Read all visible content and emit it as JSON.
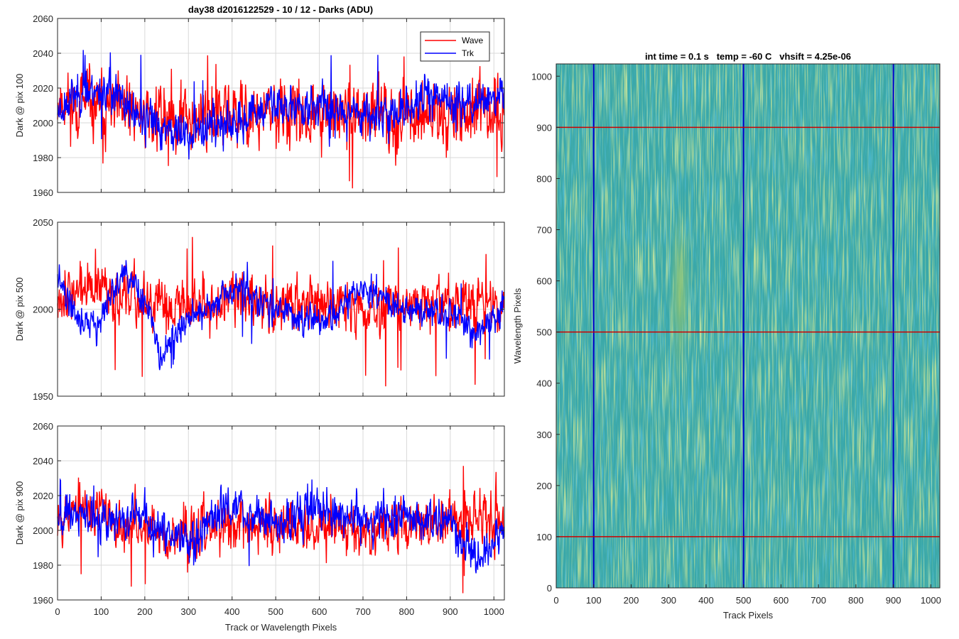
{
  "figure_title": "day38 d2016122529 - 10 / 12 - Darks (ADU)",
  "legend": {
    "position": "top-right"
  },
  "colors": {
    "wave": "#ff0000",
    "trk": "#0000ff",
    "grid": "#d9d9d9"
  },
  "chart_data": [
    {
      "type": "line",
      "ylabel": "Dark @ pix 100",
      "xlim": [
        0,
        1024
      ],
      "ylim": [
        1960,
        2060
      ],
      "yticks": [
        1960,
        1980,
        2000,
        2020,
        2040,
        2060
      ],
      "grid": true,
      "series": [
        {
          "name": "Wave",
          "color": "#ff0000",
          "mean": 2006,
          "noise": 11,
          "spike_min": 1962,
          "spike_max": 2041,
          "trend": [
            [
              0,
              2013
            ],
            [
              50,
              2010
            ],
            [
              100,
              2008
            ],
            [
              200,
              2005
            ],
            [
              300,
              2004
            ],
            [
              400,
              2003
            ],
            [
              500,
              2005
            ],
            [
              600,
              2004
            ],
            [
              700,
              2005
            ],
            [
              800,
              2004
            ],
            [
              900,
              2006
            ],
            [
              1024,
              2006
            ]
          ]
        },
        {
          "name": "Trk",
          "color": "#0000ff",
          "mean": 2008,
          "noise": 7,
          "spike_min": 1984,
          "spike_max": 2042,
          "trend": [
            [
              0,
              2008
            ],
            [
              60,
              2020
            ],
            [
              120,
              2018
            ],
            [
              180,
              2004
            ],
            [
              240,
              1998
            ],
            [
              300,
              1992
            ],
            [
              350,
              2000
            ],
            [
              400,
              1997
            ],
            [
              450,
              2003
            ],
            [
              500,
              2012
            ],
            [
              560,
              2008
            ],
            [
              620,
              2010
            ],
            [
              700,
              2006
            ],
            [
              780,
              2005
            ],
            [
              850,
              2015
            ],
            [
              900,
              2012
            ],
            [
              1024,
              2014
            ]
          ]
        }
      ]
    },
    {
      "type": "line",
      "ylabel": "Dark @ pix 500",
      "xlim": [
        0,
        1024
      ],
      "ylim": [
        1950,
        2050
      ],
      "yticks": [
        1950,
        2000,
        2050
      ],
      "grid": true,
      "series": [
        {
          "name": "Wave",
          "color": "#ff0000",
          "mean": 2004,
          "noise": 9,
          "spike_min": 1954,
          "spike_max": 2044,
          "trend": [
            [
              0,
              2010
            ],
            [
              100,
              2012
            ],
            [
              200,
              2002
            ],
            [
              300,
              2003
            ],
            [
              400,
              2006
            ],
            [
              500,
              2002
            ],
            [
              600,
              2004
            ],
            [
              700,
              2001
            ],
            [
              800,
              2002
            ],
            [
              900,
              2004
            ],
            [
              1024,
              2003
            ]
          ]
        },
        {
          "name": "Trk",
          "color": "#0000ff",
          "mean": 2000,
          "noise": 5,
          "spike_min": 1966,
          "spike_max": 2028,
          "trend": [
            [
              0,
              2015
            ],
            [
              50,
              1995
            ],
            [
              90,
              1990
            ],
            [
              150,
              2020
            ],
            [
              200,
              2005
            ],
            [
              240,
              1972
            ],
            [
              300,
              1996
            ],
            [
              350,
              2000
            ],
            [
              420,
              2013
            ],
            [
              460,
              2003
            ],
            [
              520,
              2000
            ],
            [
              600,
              1990
            ],
            [
              700,
              2012
            ],
            [
              800,
              2000
            ],
            [
              900,
              1998
            ],
            [
              960,
              1985
            ],
            [
              1024,
              2001
            ]
          ]
        }
      ]
    },
    {
      "type": "line",
      "ylabel": "Dark @ pix 900",
      "xlabel": "Track or Wavelength Pixels",
      "xlim": [
        0,
        1024
      ],
      "xticks": [
        0,
        100,
        200,
        300,
        400,
        500,
        600,
        700,
        800,
        900,
        1000
      ],
      "ylim": [
        1960,
        2060
      ],
      "yticks": [
        1960,
        1980,
        2000,
        2020,
        2040,
        2060
      ],
      "grid": true,
      "series": [
        {
          "name": "Wave",
          "color": "#ff0000",
          "mean": 2004,
          "noise": 9,
          "spike_min": 1963,
          "spike_max": 2040,
          "trend": [
            [
              0,
              2012
            ],
            [
              100,
              2010
            ],
            [
              200,
              2000
            ],
            [
              300,
              1998
            ],
            [
              400,
              2003
            ],
            [
              500,
              2002
            ],
            [
              600,
              2003
            ],
            [
              700,
              2002
            ],
            [
              800,
              2004
            ],
            [
              900,
              2006
            ],
            [
              1024,
              2008
            ]
          ]
        },
        {
          "name": "Trk",
          "color": "#0000ff",
          "mean": 2007,
          "noise": 7,
          "spike_min": 1975,
          "spike_max": 2034,
          "trend": [
            [
              0,
              2010
            ],
            [
              100,
              2008
            ],
            [
              200,
              2006
            ],
            [
              300,
              1996
            ],
            [
              400,
              2014
            ],
            [
              500,
              2004
            ],
            [
              600,
              2012
            ],
            [
              700,
              2006
            ],
            [
              800,
              2007
            ],
            [
              900,
              2004
            ],
            [
              960,
              1985
            ],
            [
              1024,
              2000
            ]
          ]
        }
      ]
    },
    {
      "type": "heatmap",
      "title": "int time = 0.1 s   temp = -60 C   vhsift = 4.25e-06",
      "xlabel": "Track Pixels",
      "ylabel": "Wavelength Pixels",
      "xlim": [
        0,
        1024
      ],
      "ylim": [
        0,
        1024
      ],
      "xticks": [
        0,
        100,
        200,
        300,
        400,
        500,
        600,
        700,
        800,
        900,
        1000
      ],
      "yticks": [
        0,
        100,
        200,
        300,
        400,
        500,
        600,
        700,
        800,
        900,
        1000
      ],
      "colormap": "parula",
      "base_color": "#3aa8a9",
      "highlight_color": "#9cc86a",
      "bright_band": {
        "x": [
          300,
          360
        ],
        "y": [
          400,
          750
        ]
      },
      "vertical_lines": {
        "x": [
          100,
          500,
          900
        ],
        "color": "#0000cc"
      },
      "horizontal_lines": {
        "y": [
          100,
          500,
          900
        ],
        "color": "#cc0000"
      }
    }
  ]
}
